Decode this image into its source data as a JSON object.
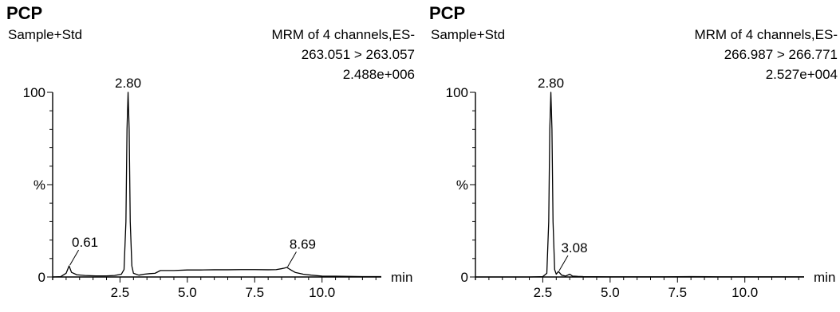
{
  "chart_data": [
    {
      "type": "line",
      "compound": "PCP",
      "sample": "Sample+Std",
      "header_lines": [
        "MRM of 4 channels,ES-",
        "263.051 > 263.057",
        "2.488e+006"
      ],
      "x_unit": "min",
      "y_tick_labels": [
        "100",
        "%",
        "0"
      ],
      "x_ticks": [
        "2.5",
        "5.0",
        "7.5",
        "10.0"
      ],
      "xlim": [
        0,
        12.2
      ],
      "ylim": [
        0,
        100
      ],
      "peak_labels": [
        {
          "label": "0.61",
          "x": 0.61,
          "y": 6
        },
        {
          "label": "2.80",
          "x": 2.8,
          "y": 100
        },
        {
          "label": "8.69",
          "x": 8.69,
          "y": 5
        }
      ],
      "series": [
        {
          "x": [
            0,
            0.3,
            0.5,
            0.61,
            0.7,
            0.9,
            1.2,
            1.6,
            2.0,
            2.3,
            2.55,
            2.65,
            2.72,
            2.76,
            2.8,
            2.84,
            2.88,
            2.94,
            3.0,
            3.2,
            3.4,
            3.6,
            3.8,
            4.0,
            4.5,
            5.0,
            5.5,
            6.0,
            6.5,
            7.0,
            7.5,
            8.0,
            8.3,
            8.5,
            8.6,
            8.69,
            8.8,
            9.0,
            9.3,
            9.6,
            10.0,
            10.5,
            11.0,
            11.5,
            12.2
          ],
          "y": [
            0,
            0.2,
            2,
            6,
            2.5,
            1.2,
            0.8,
            0.6,
            0.6,
            0.8,
            1.5,
            4,
            30,
            80,
            100,
            80,
            30,
            6,
            2,
            1,
            1.5,
            1.8,
            2,
            3.5,
            3.5,
            3.8,
            3.8,
            3.9,
            3.9,
            4.0,
            4.0,
            3.9,
            4.0,
            4.5,
            4.8,
            5.2,
            4.2,
            2.5,
            1.5,
            1.0,
            0.5,
            0.4,
            0.3,
            0.2,
            0.2
          ]
        }
      ]
    },
    {
      "type": "line",
      "compound": "PCP",
      "sample": "Sample+Std",
      "header_lines": [
        "MRM of 4 channels,ES-",
        "266.987 > 266.771",
        "2.527e+004"
      ],
      "x_unit": "min",
      "y_tick_labels": [
        "100",
        "%",
        "0"
      ],
      "x_ticks": [
        "2.5",
        "5.0",
        "7.5",
        "10.0"
      ],
      "xlim": [
        0,
        12.2
      ],
      "ylim": [
        0,
        100
      ],
      "peak_labels": [
        {
          "label": "2.80",
          "x": 2.8,
          "y": 100
        },
        {
          "label": "3.08",
          "x": 3.08,
          "y": 3
        }
      ],
      "series": [
        {
          "x": [
            0,
            1.0,
            2.0,
            2.5,
            2.65,
            2.72,
            2.76,
            2.8,
            2.84,
            2.88,
            2.94,
            3.0,
            3.08,
            3.2,
            3.35,
            3.5,
            3.6,
            3.8,
            4.0,
            5.0,
            6.0,
            7.0,
            8.0,
            9.0,
            10.0,
            11.0,
            12.2
          ],
          "y": [
            0,
            0,
            0,
            0.2,
            2,
            30,
            80,
            100,
            80,
            30,
            4,
            1.5,
            3,
            1,
            0.5,
            1.5,
            0.5,
            0.3,
            0.2,
            0.1,
            0.1,
            0.1,
            0.2,
            0.1,
            0.1,
            0.1,
            0.1
          ]
        }
      ]
    }
  ]
}
